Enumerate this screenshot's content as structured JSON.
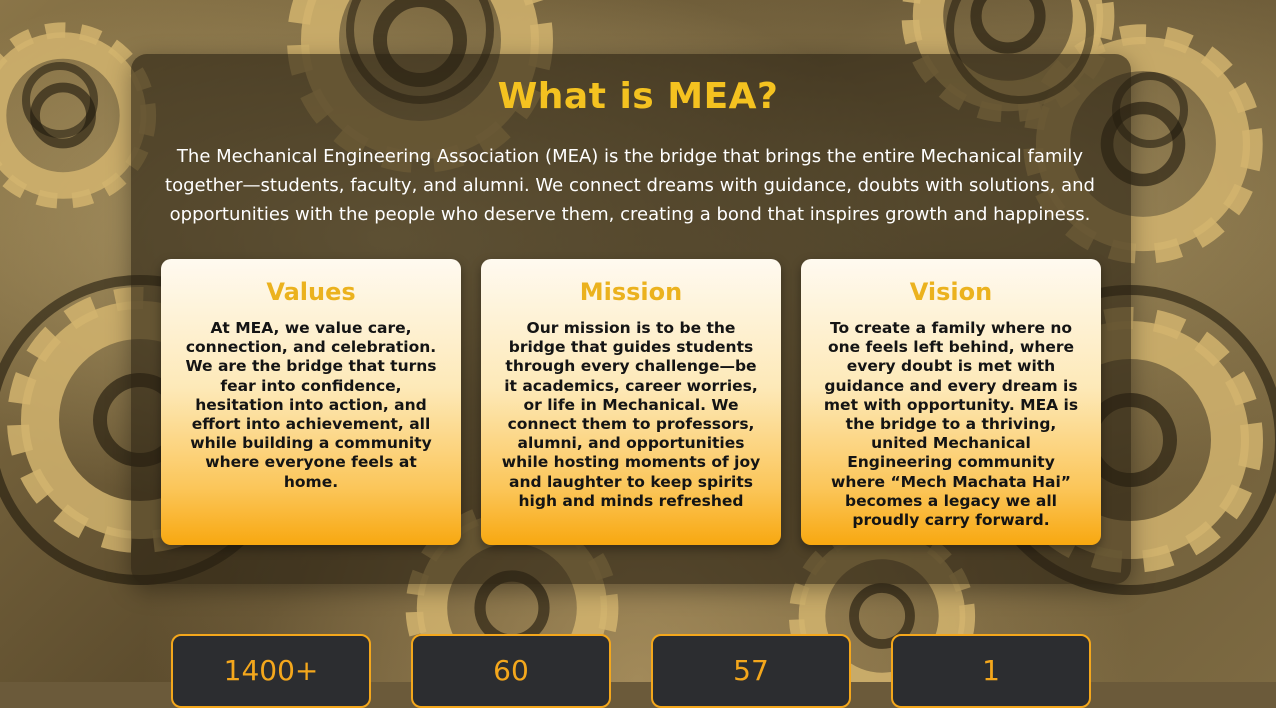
{
  "colors": {
    "accent": "#f4c220",
    "card_title": "#ebb21e",
    "stat": "#f4a71c",
    "stat_bg": "#2c2d30"
  },
  "about": {
    "title": "What is MEA?",
    "description": "The Mechanical Engineering Association (MEA) is the bridge that brings the entire Mechanical family together—students, faculty, and alumni. We connect dreams with guidance, doubts with solutions, and opportunities with the people who deserve them, creating a bond that inspires growth and happiness."
  },
  "cards": [
    {
      "title": "Values",
      "text": "At MEA, we value care, connection, and celebration. We are the bridge that turns fear into confidence, hesitation into action, and effort into achievement, all while building a community where everyone feels at home."
    },
    {
      "title": "Mission",
      "text": "Our mission is to be the bridge that guides students through every challenge—be it academics, career worries, or life in Mechanical. We connect them to professors, alumni, and opportunities while hosting moments of joy and laughter to keep spirits high and minds refreshed"
    },
    {
      "title": "Vision",
      "text": "To create a family where no one feels left behind, where every doubt is met with guidance and every dream is met with opportunity. MEA is the bridge to a thriving, united Mechanical Engineering community where “Mech Machata Hai” becomes a legacy we all\nproudly carry forward."
    }
  ],
  "stats": [
    {
      "value": "1400+"
    },
    {
      "value": "60"
    },
    {
      "value": "57"
    },
    {
      "value": "1"
    }
  ]
}
